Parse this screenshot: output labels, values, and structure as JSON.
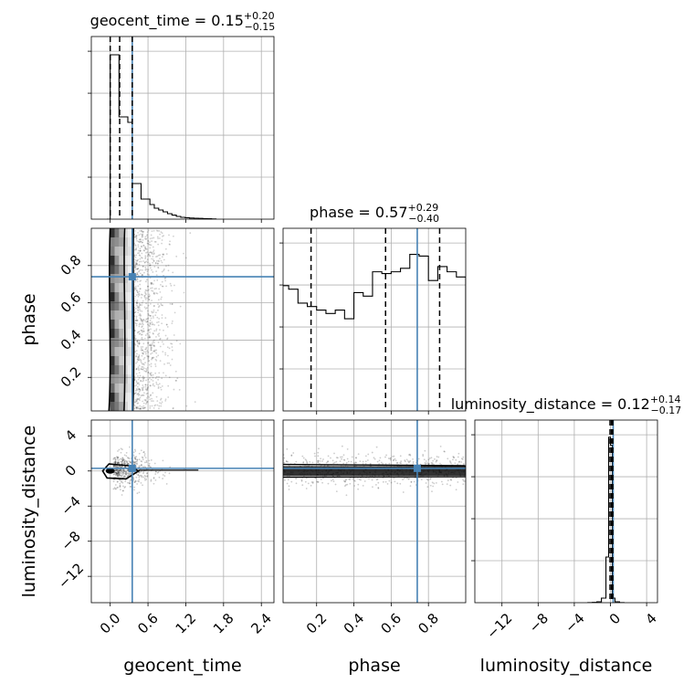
{
  "chart_data": {
    "type": "corner",
    "truth_color": "#4682b4",
    "parameters": [
      {
        "name": "geocent_time",
        "title": {
          "param": "geocent_time",
          "median": "0.15",
          "plus": "0.20",
          "minus": "0.15"
        },
        "range": [
          -0.3,
          2.6
        ],
        "ticks": [
          0.0,
          0.6,
          1.2,
          1.8,
          2.4
        ],
        "tick_labels": [
          "0.0",
          "0.6",
          "1.2",
          "1.8",
          "2.4"
        ],
        "quantiles": [
          0.0,
          0.15,
          0.35
        ],
        "truth": 0.35,
        "hist": {
          "edges": [
            -0.05,
            0.0,
            0.07,
            0.14,
            0.21,
            0.28,
            0.35,
            0.42,
            0.49,
            0.56,
            0.63,
            0.7,
            0.77,
            0.84,
            0.91,
            0.98,
            1.05,
            1.12,
            1.19,
            1.26,
            1.33,
            1.4,
            1.47,
            1.54,
            1.61,
            1.68
          ],
          "counts": [
            0,
            900,
            900,
            560,
            560,
            530,
            195,
            195,
            110,
            110,
            80,
            60,
            50,
            40,
            30,
            22,
            15,
            10,
            8,
            6,
            5,
            4,
            3,
            2,
            1
          ],
          "ymax": 1000
        }
      },
      {
        "name": "phase",
        "title": {
          "param": "phase",
          "median": "0.57",
          "plus": "0.29",
          "minus": "0.40"
        },
        "range": [
          0.0,
          1.0
        ],
        "display_range": [
          0.02,
          1.0
        ],
        "ticks": [
          0.2,
          0.4,
          0.6,
          0.8
        ],
        "tick_labels": [
          "0.2",
          "0.4",
          "0.6",
          "0.8"
        ],
        "quantiles": [
          0.17,
          0.57,
          0.86
        ],
        "truth": 0.74,
        "hist": {
          "edges": [
            0.0,
            0.05,
            0.1,
            0.15,
            0.2,
            0.25,
            0.3,
            0.35,
            0.4,
            0.45,
            0.5,
            0.55,
            0.6,
            0.65,
            0.7,
            0.75,
            0.8,
            0.85,
            0.9,
            0.95,
            1.0
          ],
          "counts": [
            72,
            70,
            62,
            60,
            58,
            56,
            58,
            53,
            68,
            66,
            80,
            79,
            80,
            82,
            90,
            89,
            75,
            83,
            80,
            77
          ],
          "ymax": 105
        }
      },
      {
        "name": "luminosity_distance",
        "title": {
          "param": "luminosity_distance",
          "median": "0.12",
          "plus": "0.14",
          "minus": "0.17"
        },
        "range": [
          -15,
          5.2
        ],
        "ticks": [
          -12,
          -8,
          -4,
          0,
          4
        ],
        "tick_labels": [
          "−12",
          "−8",
          "−4",
          "0",
          "4"
        ],
        "quantiles": [
          -0.05,
          0.12,
          0.26
        ],
        "truth": 0.3,
        "hist": {
          "edges": [
            -2.5,
            -2.0,
            -1.5,
            -1.0,
            -0.5,
            -0.2,
            0.0,
            0.2,
            0.5,
            1.0,
            1.5
          ],
          "counts": [
            1,
            3,
            8,
            40,
            400,
            1450,
            1380,
            40,
            8,
            1
          ],
          "ymax": 1600
        }
      }
    ],
    "pairs": [
      {
        "x": "geocent_time",
        "y": "phase",
        "truth_point": [
          0.35,
          0.74
        ]
      },
      {
        "x": "geocent_time",
        "y": "luminosity_distance",
        "truth_point": [
          0.35,
          0.3
        ]
      },
      {
        "x": "phase",
        "y": "luminosity_distance",
        "truth_point": [
          0.74,
          0.3
        ]
      }
    ],
    "y_ticks": {
      "phase": {
        "ticks": [
          0.2,
          0.4,
          0.6,
          0.8
        ],
        "labels": [
          "0.2",
          "0.4",
          "0.6",
          "0.8"
        ],
        "range": [
          0.02,
          1.0
        ]
      },
      "luminosity_distance": {
        "ticks": [
          -12,
          -8,
          -4,
          0,
          4
        ],
        "labels": [
          "−12",
          "−8",
          "−4",
          "0",
          "4"
        ],
        "range": [
          -15,
          5.8
        ]
      }
    },
    "grid": true
  }
}
